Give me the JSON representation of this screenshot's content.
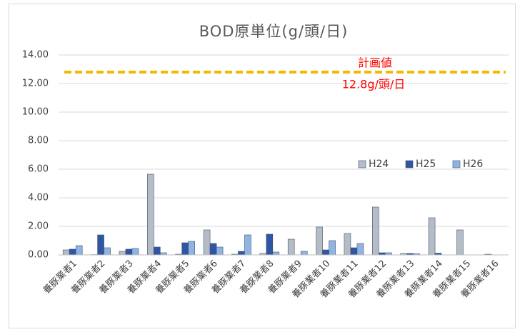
{
  "chart_data": {
    "type": "bar",
    "title": "BOD原単位(g/頭/日)",
    "categories": [
      "養豚業者1",
      "養豚業者2",
      "養豚業者3",
      "養豚業者4",
      "養豚業者5",
      "養豚業者6",
      "養豚業者7",
      "養豚業者8",
      "養豚業者9",
      "養豚業者10",
      "養豚業者11",
      "養豚業者12",
      "養豚業者13",
      "養豚業者14",
      "養豚業者15",
      "養豚業者16"
    ],
    "series": [
      {
        "name": "H24",
        "color": "#b4bcc8",
        "values": [
          0.35,
          0.02,
          0.25,
          5.65,
          0.05,
          1.75,
          0.05,
          0.1,
          1.1,
          1.95,
          1.5,
          3.35,
          0.1,
          2.6,
          1.75,
          0.05
        ]
      },
      {
        "name": "H25",
        "color": "#2f55a4",
        "values": [
          0.4,
          1.4,
          0.4,
          0.55,
          0.85,
          0.8,
          0.25,
          1.45,
          0,
          0.35,
          0.5,
          0.15,
          0.1,
          0.12,
          0,
          0
        ]
      },
      {
        "name": "H26",
        "color": "#8fb4e3",
        "values": [
          0.65,
          0.5,
          0.45,
          0.15,
          0.95,
          0.55,
          1.4,
          0.2,
          0.25,
          1.0,
          0.8,
          0.15,
          0.08,
          0,
          0,
          0
        ]
      }
    ],
    "ylim": [
      0,
      14
    ],
    "yticks": [
      {
        "value": 0,
        "label": "0.00"
      },
      {
        "value": 2,
        "label": "2.00"
      },
      {
        "value": 4,
        "label": "4.00"
      },
      {
        "value": 6,
        "label": "6.00"
      },
      {
        "value": 8,
        "label": "8.00"
      },
      {
        "value": 10,
        "label": "10.00"
      },
      {
        "value": 12,
        "label": "12.00"
      },
      {
        "value": 14,
        "label": "14.00"
      }
    ],
    "grid": true,
    "legend_loc": "right",
    "reference_line": {
      "value": 12.8,
      "color": "#f5b800",
      "label": "計画値",
      "sublabel": "12.8g/頭/日",
      "label_color": "#ff0000"
    }
  }
}
